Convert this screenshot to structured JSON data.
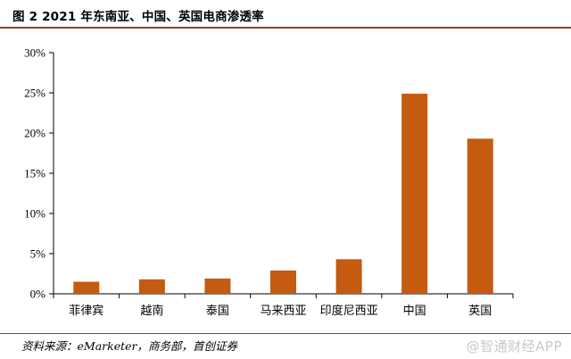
{
  "title": "图 2 2021 年东南亚、中国、英国电商渗透率",
  "source": "资料来源：eMarketer，商务部，首创证券",
  "watermark": "@智通财经APP",
  "colors": {
    "bar": "#c55a11",
    "axis": "#000000",
    "rule": "#a33b1e"
  },
  "chart_data": {
    "type": "bar",
    "title": "",
    "xlabel": "",
    "ylabel": "",
    "categories": [
      "菲律宾",
      "越南",
      "泰国",
      "马来西亚",
      "印度尼西亚",
      "中国",
      "英国"
    ],
    "values": [
      0.015,
      0.018,
      0.019,
      0.029,
      0.043,
      0.249,
      0.193
    ],
    "ylim": [
      0,
      0.3
    ],
    "yticks": [
      0,
      0.05,
      0.1,
      0.15,
      0.2,
      0.25,
      0.3
    ],
    "ytick_labels": [
      "0%",
      "5%",
      "10%",
      "15%",
      "20%",
      "25%",
      "30%"
    ],
    "grid": false,
    "legend": "none"
  }
}
